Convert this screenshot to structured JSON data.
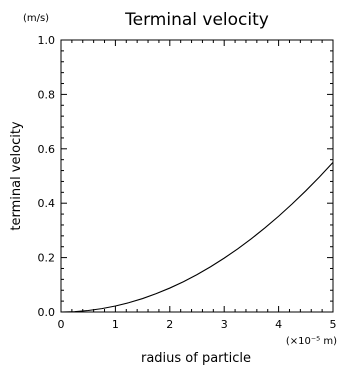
{
  "chart_data": {
    "type": "line",
    "title": "Terminal velocity",
    "xlabel": "radius of particle",
    "ylabel": "terminal velocity",
    "y_unit": "(m/s)",
    "x_unit": "(×10⁻⁵ m)",
    "xlim": [
      0,
      5
    ],
    "ylim": [
      0,
      1.0
    ],
    "x_ticks": [
      0,
      1,
      2,
      3,
      4,
      5
    ],
    "x_tick_labels": [
      "0",
      "1",
      "2",
      "3",
      "4",
      "5"
    ],
    "y_ticks": [
      0,
      0.2,
      0.4,
      0.6,
      0.8,
      1.0
    ],
    "y_tick_labels": [
      "0.0",
      "0.2",
      "0.4",
      "0.6",
      "0.8",
      "1.0"
    ],
    "grid": false,
    "series": [
      {
        "x": [
          0,
          0.25,
          0.5,
          0.75,
          1,
          1.25,
          1.5,
          1.75,
          2,
          2.25,
          2.5,
          2.75,
          3,
          3.25,
          3.5,
          3.75,
          4,
          4.25,
          4.5,
          4.75,
          5
        ],
        "y": [
          0,
          0.0014,
          0.0055,
          0.0124,
          0.022,
          0.0344,
          0.0495,
          0.0674,
          0.088,
          0.1114,
          0.1375,
          0.1664,
          0.198,
          0.2324,
          0.2695,
          0.3094,
          0.352,
          0.3974,
          0.4455,
          0.4964,
          0.55
        ],
        "color": "#000000"
      }
    ]
  }
}
